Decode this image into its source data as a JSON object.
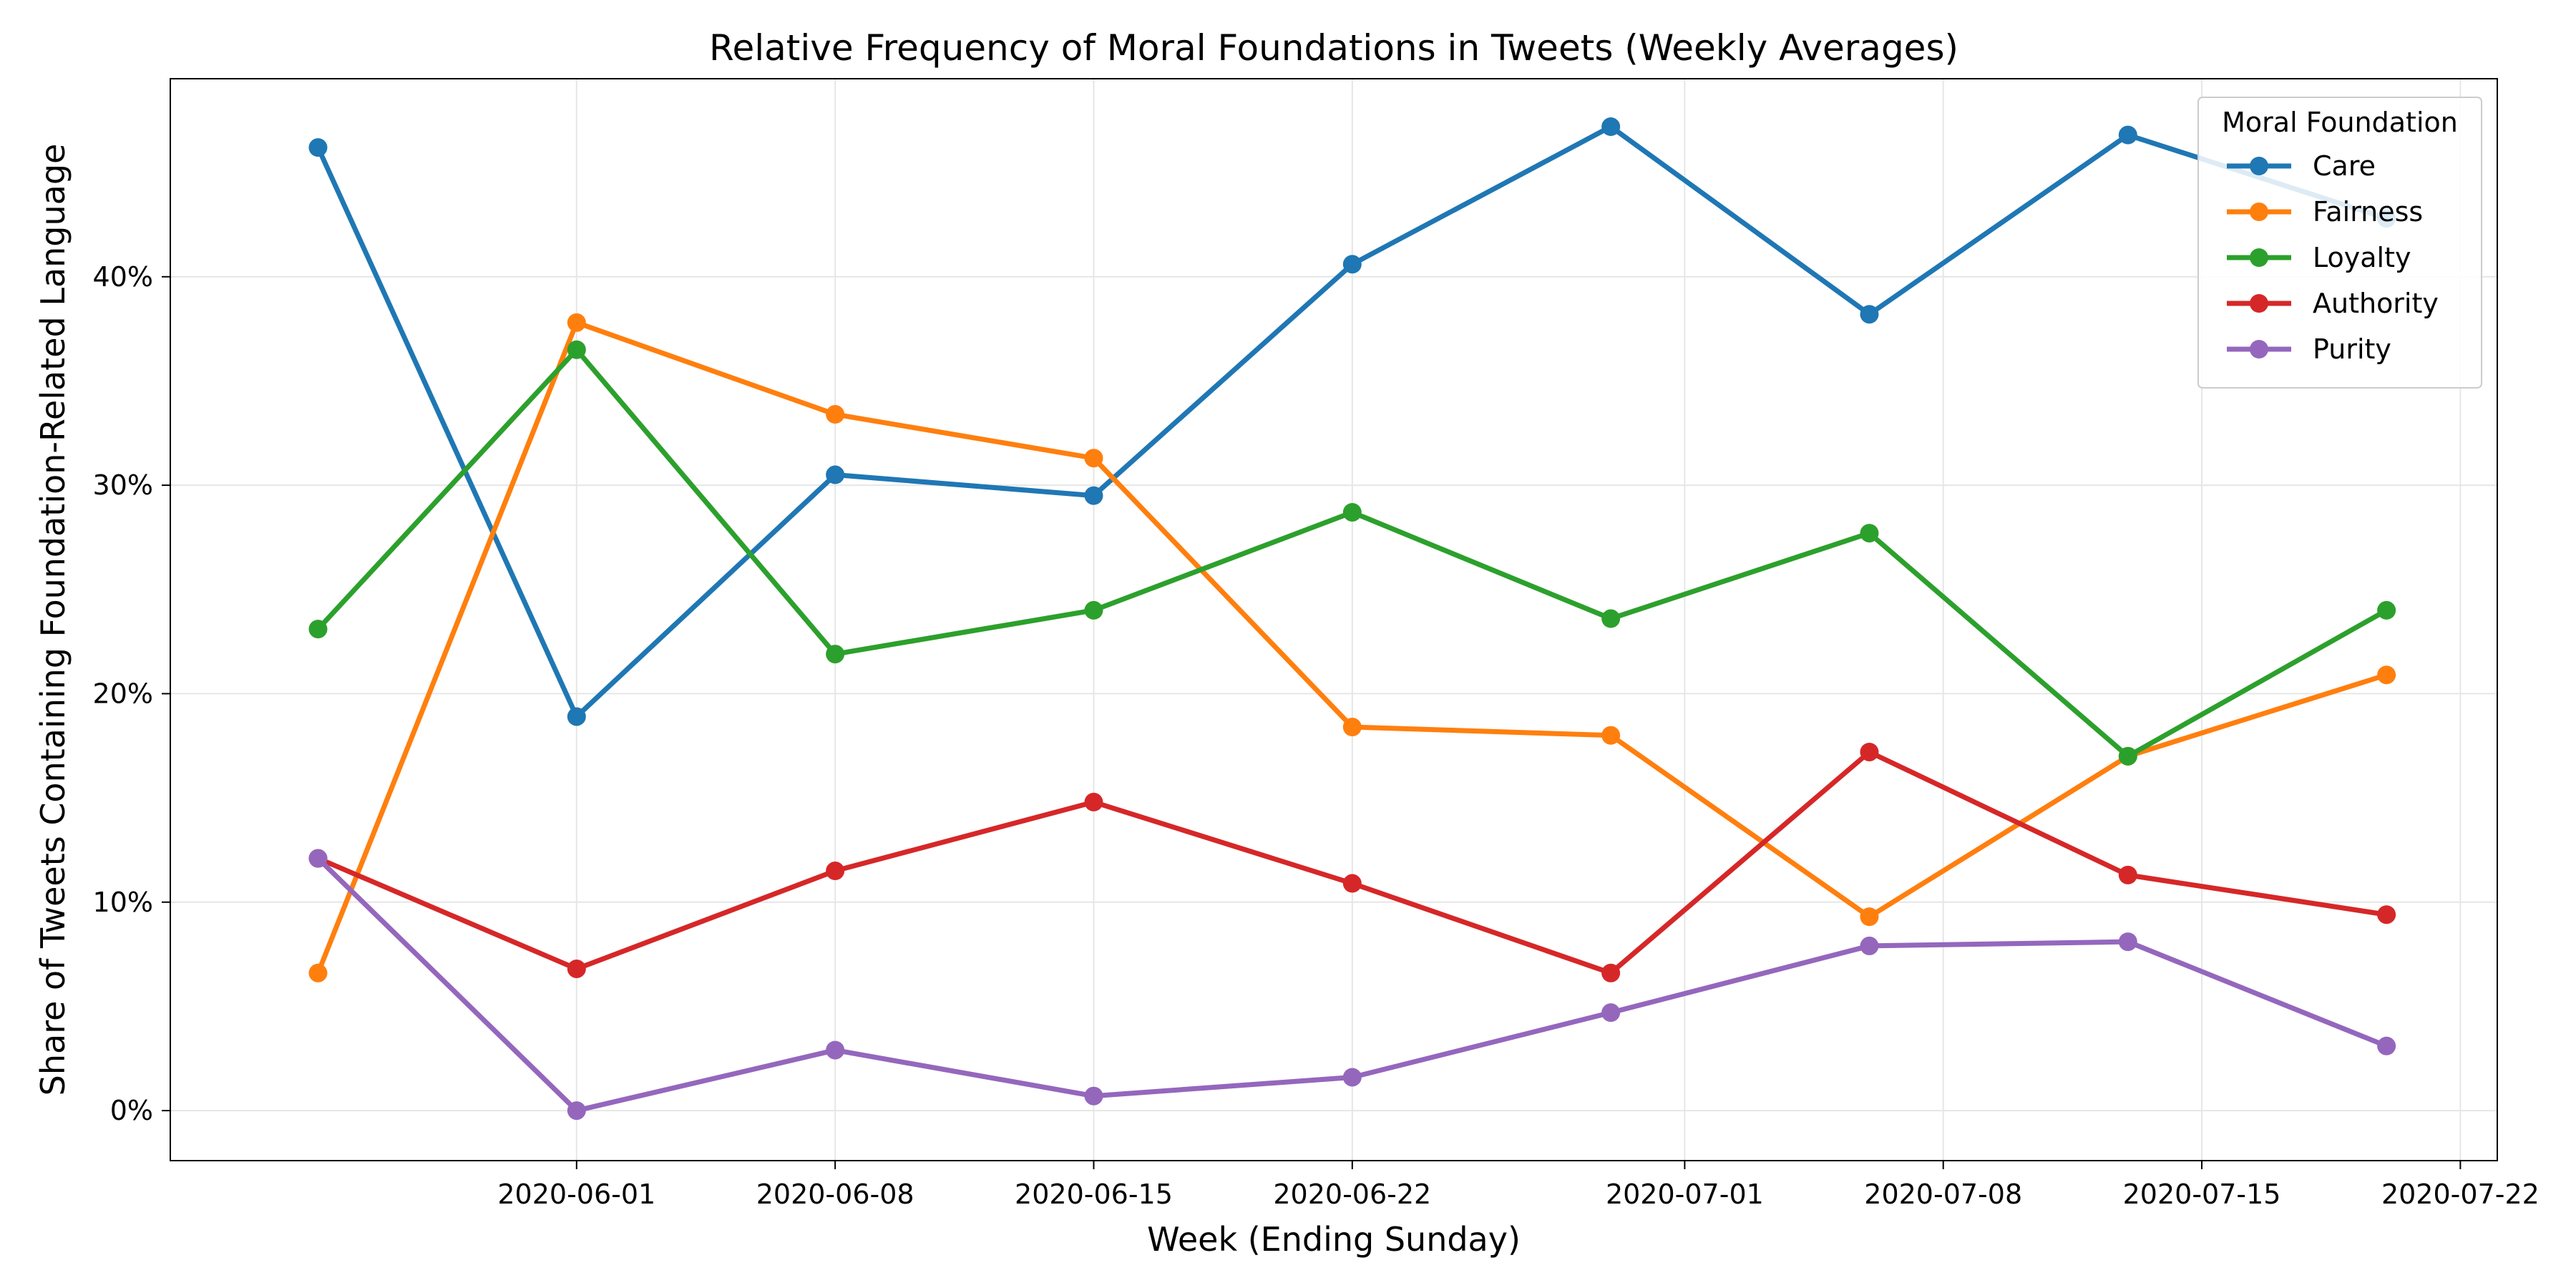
{
  "chart_data": {
    "type": "line",
    "title": "Relative Frequency of Moral Foundations in Tweets (Weekly Averages)",
    "xlabel": "Week (Ending Sunday)",
    "ylabel": "Share of Tweets Containing Foundation-Related Language",
    "x": [
      "2020-05-25",
      "2020-06-01",
      "2020-06-08",
      "2020-06-15",
      "2020-06-22",
      "2020-06-29",
      "2020-07-06",
      "2020-07-13",
      "2020-07-20"
    ],
    "xlim": [
      "2020-05-21",
      "2020-07-23"
    ],
    "x_ticks": [
      "2020-06-01",
      "2020-06-08",
      "2020-06-15",
      "2020-06-22",
      "2020-07-01",
      "2020-07-08",
      "2020-07-15",
      "2020-07-22"
    ],
    "ylim": [
      -0.024,
      0.495
    ],
    "y_ticks": [
      0,
      0.1,
      0.2,
      0.3,
      0.4
    ],
    "y_tick_labels": [
      "0%",
      "10%",
      "20%",
      "30%",
      "40%"
    ],
    "grid": true,
    "legend": {
      "title": "Moral Foundation",
      "placement": "top-right"
    },
    "series": [
      {
        "name": "Care",
        "color": "#1f77b4",
        "values": [
          0.462,
          0.189,
          0.305,
          0.295,
          0.406,
          0.472,
          0.382,
          0.468,
          0.428
        ]
      },
      {
        "name": "Fairness",
        "color": "#ff7f0e",
        "values": [
          0.066,
          0.378,
          0.334,
          0.313,
          0.184,
          0.18,
          0.093,
          0.17,
          0.209
        ]
      },
      {
        "name": "Loyalty",
        "color": "#2ca02c",
        "values": [
          0.231,
          0.365,
          0.219,
          0.24,
          0.287,
          0.236,
          0.277,
          0.17,
          0.24
        ]
      },
      {
        "name": "Authority",
        "color": "#d62728",
        "values": [
          0.121,
          0.068,
          0.115,
          0.148,
          0.109,
          0.066,
          0.172,
          0.113,
          0.094
        ]
      },
      {
        "name": "Purity",
        "color": "#9467bd",
        "values": [
          0.121,
          0.0,
          0.029,
          0.007,
          0.016,
          0.047,
          0.079,
          0.081,
          0.031
        ]
      }
    ]
  }
}
